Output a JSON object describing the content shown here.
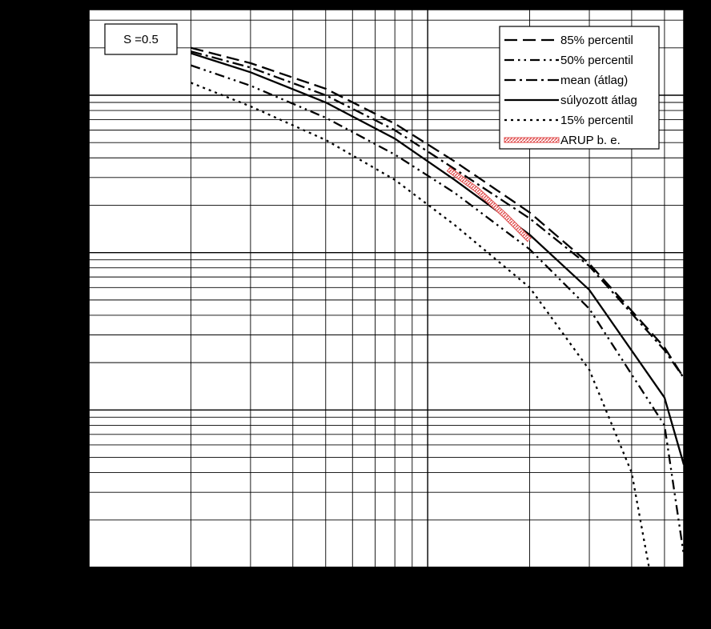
{
  "chart_data": {
    "type": "line",
    "title": "",
    "xlabel": "",
    "ylabel": "",
    "x_scale": "log",
    "y_scale": "log",
    "xlim": [
      0.001,
      0.057
    ],
    "ylim": [
      0.001,
      3.5
    ],
    "grid": true,
    "legend_position": "top-right",
    "annotation": "S =0.5",
    "series": [
      {
        "name": "85% percentil",
        "style": "long-dash",
        "color": "#000000",
        "x": [
          0.002,
          0.003,
          0.005,
          0.008,
          0.012,
          0.02,
          0.03,
          0.05,
          0.057
        ],
        "y": [
          2.0,
          1.6,
          1.1,
          0.66,
          0.38,
          0.18,
          0.085,
          0.025,
          0.016
        ]
      },
      {
        "name": "50% percentil",
        "style": "dash-dot-dot",
        "color": "#000000",
        "x": [
          0.002,
          0.003,
          0.005,
          0.008,
          0.012,
          0.02,
          0.03,
          0.05,
          0.057
        ],
        "y": [
          1.55,
          1.15,
          0.72,
          0.42,
          0.24,
          0.105,
          0.044,
          0.008,
          0.0012
        ]
      },
      {
        "name": "mean (átlag)",
        "style": "dash-dot",
        "color": "#000000",
        "x": [
          0.002,
          0.003,
          0.005,
          0.008,
          0.012,
          0.02,
          0.03,
          0.05,
          0.057
        ],
        "y": [
          1.9,
          1.5,
          1.0,
          0.6,
          0.34,
          0.165,
          0.082,
          0.024,
          0.016
        ]
      },
      {
        "name": "súlyozott átlag",
        "style": "solid",
        "color": "#000000",
        "x": [
          0.002,
          0.003,
          0.005,
          0.008,
          0.012,
          0.02,
          0.03,
          0.05,
          0.057
        ],
        "y": [
          1.85,
          1.4,
          0.9,
          0.53,
          0.29,
          0.13,
          0.058,
          0.012,
          0.0045
        ]
      },
      {
        "name": "15% percentil",
        "style": "dotted",
        "color": "#000000",
        "x": [
          0.002,
          0.003,
          0.005,
          0.008,
          0.012,
          0.02,
          0.03,
          0.04,
          0.045
        ],
        "y": [
          1.2,
          0.85,
          0.52,
          0.29,
          0.15,
          0.06,
          0.018,
          0.004,
          0.001
        ]
      },
      {
        "name": "ARUP b. e.",
        "style": "hatched",
        "color": "#e05050",
        "x": [
          0.0115,
          0.014,
          0.017,
          0.02
        ],
        "y": [
          0.34,
          0.25,
          0.17,
          0.12
        ]
      }
    ]
  }
}
